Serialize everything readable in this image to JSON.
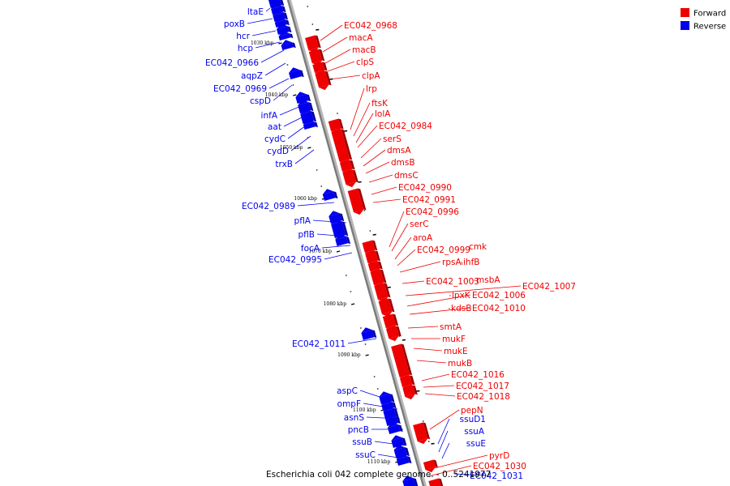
{
  "caption": "Escherichia coli 042 complete genome. - 0..5241977",
  "legend": {
    "forward": {
      "label": "Forward",
      "color": "#ee0000"
    },
    "reverse": {
      "label": "Reverse",
      "color": "#0000ee"
    }
  },
  "ticks": [
    "1030 kbp",
    "1040 kbp",
    "1050 kbp",
    "1060 kbp",
    "1070 kbp",
    "1080 kbp",
    "1090 kbp",
    "1100 kbp",
    "1110 kbp"
  ],
  "reverse_genes": [
    "ltaE",
    "poxB",
    "hcr",
    "hcp",
    "EC042_0966",
    "aqpZ",
    "EC042_0969",
    "cspD",
    "infA",
    "aat",
    "cydC",
    "cydD",
    "trxB",
    "EC042_0989",
    "pflA",
    "pflB",
    "focA",
    "EC042_0995",
    "EC042_1011",
    "aspC",
    "ompF",
    "asnS",
    "pncB",
    "ssuB",
    "ssuC",
    "ssuD1",
    "ssuA",
    "ssuE",
    "EC042_1031"
  ],
  "forward_genes": [
    "EC042_0968",
    "macA",
    "macB",
    "clpS",
    "clpA",
    "lrp",
    "ftsK",
    "lolA",
    "EC042_0984",
    "serS",
    "dmsA",
    "dmsB",
    "dmsC",
    "EC042_0990",
    "EC042_0991",
    "EC042_0996",
    "serC",
    "aroA",
    "EC042_0999",
    "cmk",
    "rpsA",
    "ihfB",
    "EC042_1003",
    "msbA",
    "EC042_1007",
    "lpxK",
    "EC042_1006",
    "kdsB",
    "EC042_1010",
    "smtA",
    "mukF",
    "mukE",
    "mukB",
    "EC042_1016",
    "EC042_1017",
    "EC042_1018",
    "pepN",
    "pyrD",
    "EC042_1030"
  ]
}
